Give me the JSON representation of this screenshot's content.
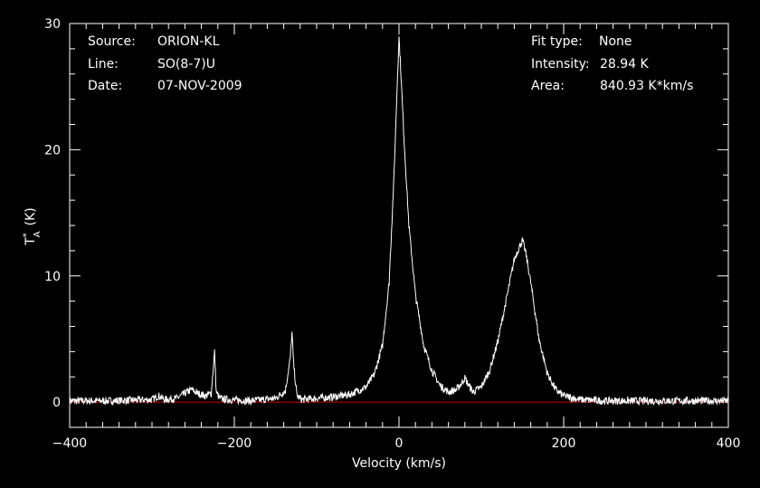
{
  "header_left": {
    "source_label": "Source:",
    "source_value": "ORION-KL",
    "line_label": "Line:",
    "line_value": "SO(8-7)U",
    "date_label": "Date:",
    "date_value": "07-NOV-2009"
  },
  "header_right": {
    "fit_label": "Fit type:",
    "fit_value": "None",
    "intensity_label": "Intensity:",
    "intensity_value": "28.94 K",
    "area_label": "Area:",
    "area_value": "840.93 K*km/s"
  },
  "chart_data": {
    "type": "line",
    "xlabel": "Velocity (km/s)",
    "ylabel_base": "T",
    "ylabel_sup": "*",
    "ylabel_sub": "A",
    "ylabel_unit": "(K)",
    "xlim": [
      -400,
      400
    ],
    "ylim": [
      -2,
      30
    ],
    "xticks": [
      -400,
      -200,
      0,
      200,
      400
    ],
    "yticks": [
      0,
      10,
      20,
      30
    ],
    "grid": false,
    "colors": {
      "background": "#000000",
      "spectrum": "#ffffff",
      "baseline": "#cc0000",
      "axes": "#ffffff"
    },
    "baseline_y": 0,
    "series": [
      {
        "x": [
          -400,
          -350,
          -300,
          -292,
          -285,
          -270,
          -260,
          -252,
          -245,
          -235,
          -228,
          -224,
          -222,
          -218,
          -210,
          -180,
          -150,
          -138,
          -132,
          -130,
          -128,
          -124,
          -118,
          -100,
          -80,
          -60,
          -40,
          -30,
          -20,
          -12,
          -6,
          -2,
          0,
          2,
          6,
          12,
          20,
          30,
          40,
          50,
          60,
          70,
          76,
          80,
          84,
          90,
          100,
          110,
          120,
          130,
          140,
          146,
          150,
          154,
          160,
          170,
          180,
          190,
          200,
          220,
          250,
          300,
          350,
          400
        ],
        "y": [
          0.1,
          0.1,
          0.2,
          0.5,
          0.2,
          0.3,
          0.7,
          1.0,
          0.7,
          0.5,
          0.7,
          4.0,
          0.8,
          0.3,
          0.2,
          0.1,
          0.3,
          0.9,
          3.5,
          5.5,
          3.0,
          0.5,
          0.2,
          0.3,
          0.4,
          0.6,
          1.2,
          2.2,
          4.5,
          9.5,
          18.0,
          25.5,
          28.9,
          26.5,
          21.0,
          14.0,
          8.5,
          4.5,
          2.5,
          1.3,
          0.8,
          1.0,
          1.5,
          1.9,
          1.4,
          0.8,
          1.2,
          2.5,
          4.8,
          8.0,
          11.3,
          12.3,
          12.8,
          11.8,
          9.5,
          5.0,
          2.3,
          1.0,
          0.5,
          0.2,
          0.1,
          0.1,
          0.1,
          0.1
        ]
      }
    ]
  }
}
